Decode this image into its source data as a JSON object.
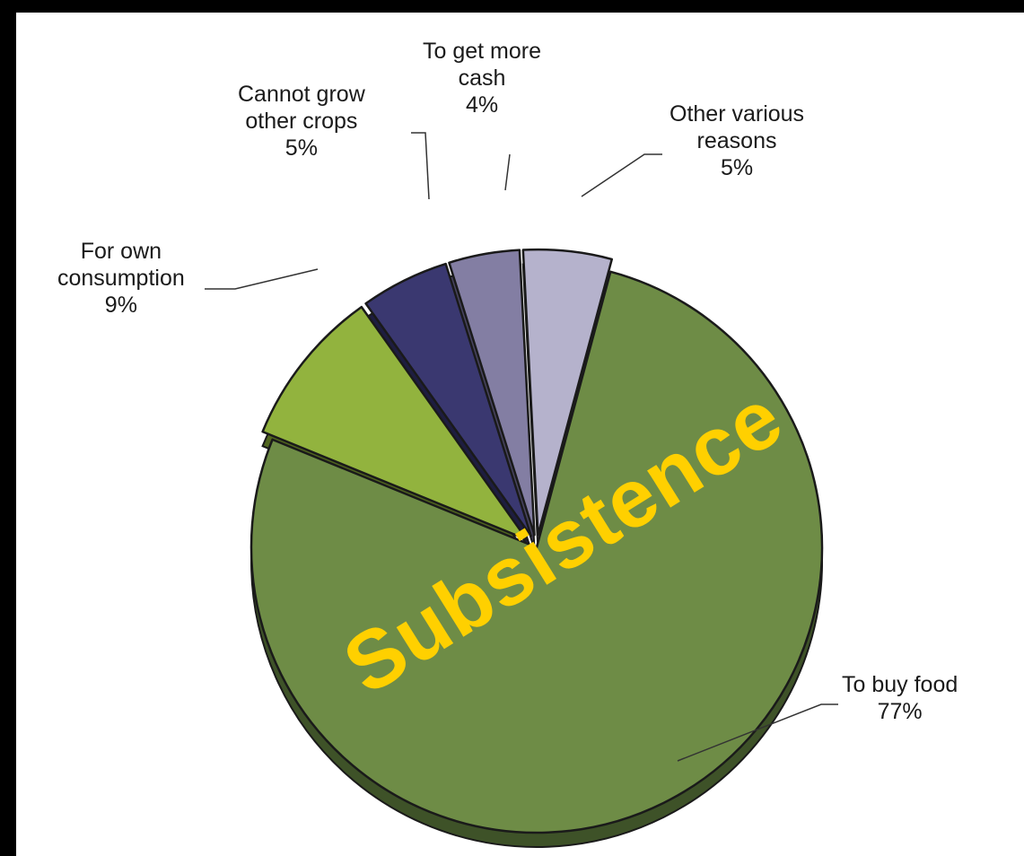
{
  "chart_data": {
    "type": "pie",
    "title": "",
    "slices": [
      {
        "label": "To buy food",
        "value": 77,
        "value_label": "77%",
        "color": "#6e8c46",
        "side": "#3e5228",
        "exploded": false
      },
      {
        "label": "For own consumption",
        "value": 9,
        "value_label": "9%",
        "color": "#92b33e",
        "side": "#51661f",
        "exploded": true
      },
      {
        "label": "Cannot grow other crops",
        "value": 5,
        "value_label": "5%",
        "color": "#3a3870",
        "side": "#1e1d40",
        "exploded": true
      },
      {
        "label": "To get more cash",
        "value": 4,
        "value_label": "4%",
        "color": "#837ea3",
        "side": "#4a4663",
        "exploded": true
      },
      {
        "label": "Other various reasons",
        "value": 5,
        "value_label": "5%",
        "color": "#b5b2cc",
        "side": "#777491",
        "exploded": true
      }
    ],
    "label_text": [
      "To buy food\n77%",
      "For own\nconsumption\n9%",
      "Cannot grow\nother crops\n5%",
      "To get more\ncash\n4%",
      "Other various\nreasons\n5%"
    ],
    "overlay_text": "Subsistence",
    "overlay_color": "#ffd000"
  }
}
